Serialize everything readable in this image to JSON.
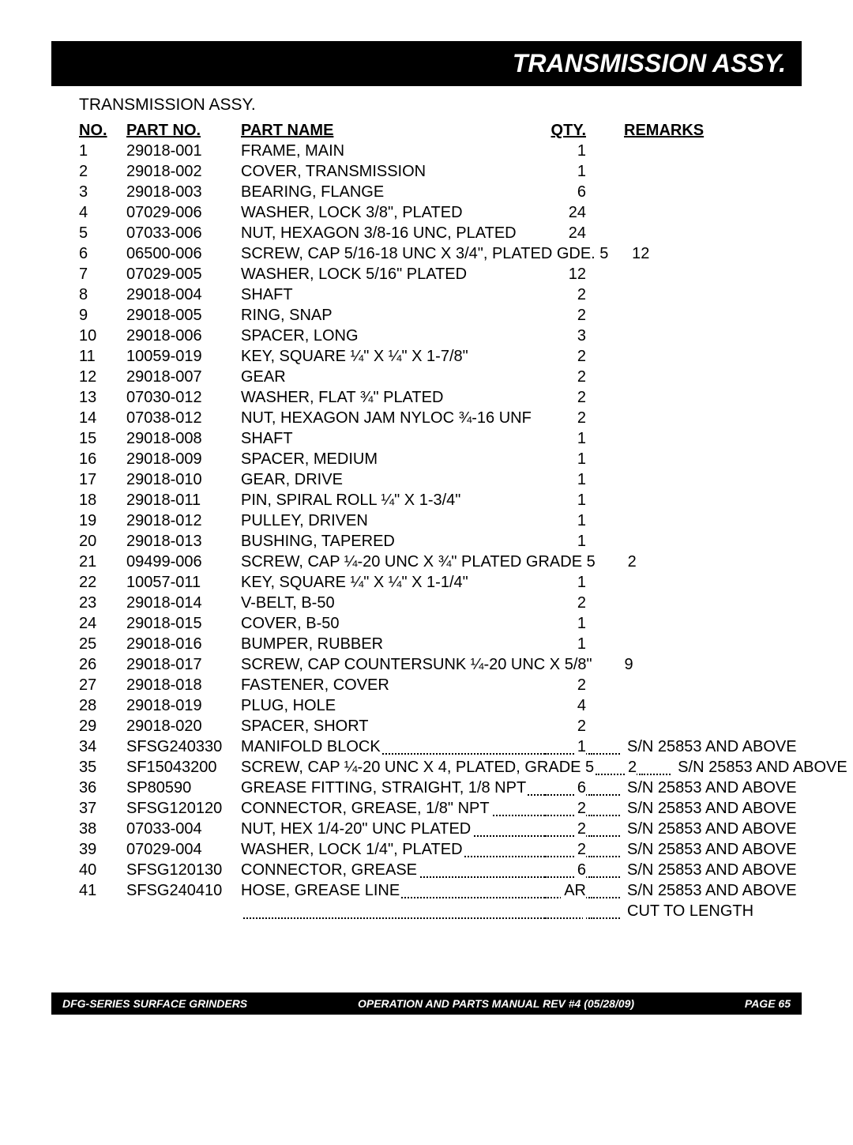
{
  "header_title": "TRANSMISSION ASSY.",
  "subheading": "TRANSMISSION ASSY.",
  "columns": {
    "no": "NO.",
    "part": "PART NO.",
    "name": "PART NAME",
    "qty": "QTY.",
    "remarks": "REMARKS"
  },
  "rows": [
    {
      "no": "1",
      "part": "29018-001",
      "name": "FRAME, MAIN",
      "qty": "1",
      "remarks": "",
      "dotted": false
    },
    {
      "no": "2",
      "part": "29018-002",
      "name": "COVER, TRANSMISSION",
      "qty": "1",
      "remarks": "",
      "dotted": false
    },
    {
      "no": "3",
      "part": "29018-003",
      "name": "BEARING, FLANGE",
      "qty": "6",
      "remarks": "",
      "dotted": false
    },
    {
      "no": "4",
      "part": "07029-006",
      "name": "WASHER, LOCK 3/8\", PLATED",
      "qty": "24",
      "remarks": "",
      "dotted": false
    },
    {
      "no": "5",
      "part": "07033-006",
      "name": "NUT, HEXAGON 3/8-16 UNC, PLATED",
      "qty": "24",
      "remarks": "",
      "dotted": false
    },
    {
      "no": "6",
      "part": "06500-006",
      "name": "SCREW, CAP 5/16-18 UNC X 3/4\", PLATED GDE. 5",
      "qty": "12",
      "remarks": "",
      "dotted": false
    },
    {
      "no": "7",
      "part": "07029-005",
      "name": "WASHER, LOCK 5/16\" PLATED",
      "qty": "12",
      "remarks": "",
      "dotted": false
    },
    {
      "no": "8",
      "part": "29018-004",
      "name": "SHAFT",
      "qty": "2",
      "remarks": "",
      "dotted": false
    },
    {
      "no": "9",
      "part": "29018-005",
      "name": "RING, SNAP",
      "qty": "2",
      "remarks": "",
      "dotted": false
    },
    {
      "no": "10",
      "part": "29018-006",
      "name": "SPACER, LONG",
      "qty": "3",
      "remarks": "",
      "dotted": false
    },
    {
      "no": "11",
      "part": "10059-019",
      "name": "KEY, SQUARE ¼\" X ¼\" X 1-7/8\"",
      "qty": "2",
      "remarks": "",
      "dotted": false
    },
    {
      "no": "12",
      "part": "29018-007",
      "name": "GEAR",
      "qty": "2",
      "remarks": "",
      "dotted": false
    },
    {
      "no": "13",
      "part": "07030-012",
      "name": "WASHER, FLAT ¾\" PLATED",
      "qty": "2",
      "remarks": "",
      "dotted": false
    },
    {
      "no": "14",
      "part": "07038-012",
      "name": "NUT, HEXAGON JAM NYLOC ¾-16 UNF",
      "qty": "2",
      "remarks": "",
      "dotted": false
    },
    {
      "no": "15",
      "part": "29018-008",
      "name": "SHAFT",
      "qty": "1",
      "remarks": "",
      "dotted": false
    },
    {
      "no": "16",
      "part": "29018-009",
      "name": "SPACER, MEDIUM",
      "qty": "1",
      "remarks": "",
      "dotted": false
    },
    {
      "no": "17",
      "part": "29018-010",
      "name": "GEAR, DRIVE",
      "qty": "1",
      "remarks": "",
      "dotted": false
    },
    {
      "no": "18",
      "part": "29018-011",
      "name": "PIN, SPIRAL ROLL ¼\" X 1-3/4\"",
      "qty": "1",
      "remarks": "",
      "dotted": false
    },
    {
      "no": "19",
      "part": "29018-012",
      "name": "PULLEY, DRIVEN",
      "qty": "1",
      "remarks": "",
      "dotted": false
    },
    {
      "no": "20",
      "part": "29018-013",
      "name": "BUSHING, TAPERED",
      "qty": "1",
      "remarks": "",
      "dotted": false
    },
    {
      "no": "21",
      "part": "09499-006",
      "name": "SCREW, CAP ¼-20 UNC X ¾\" PLATED GRADE 5",
      "qty": "2",
      "remarks": "",
      "dotted": false
    },
    {
      "no": "22",
      "part": "10057-011",
      "name": "KEY, SQUARE ¼\" X ¼\" X 1-1/4\"",
      "qty": "1",
      "remarks": "",
      "dotted": false
    },
    {
      "no": "23",
      "part": "29018-014",
      "name": "V-BELT, B-50",
      "qty": "2",
      "remarks": "",
      "dotted": false
    },
    {
      "no": "24",
      "part": "29018-015",
      "name": "COVER, B-50",
      "qty": "1",
      "remarks": "",
      "dotted": false
    },
    {
      "no": "25",
      "part": "29018-016",
      "name": "BUMPER, RUBBER",
      "qty": "1",
      "remarks": "",
      "dotted": false
    },
    {
      "no": "26",
      "part": "29018-017",
      "name": "SCREW, CAP COUNTERSUNK ¼-20 UNC X 5/8\"",
      "qty": "9",
      "remarks": "",
      "dotted": false
    },
    {
      "no": "27",
      "part": "29018-018",
      "name": "FASTENER, COVER",
      "qty": "2",
      "remarks": "",
      "dotted": false
    },
    {
      "no": "28",
      "part": "29018-019",
      "name": "PLUG, HOLE",
      "qty": "4",
      "remarks": "",
      "dotted": false
    },
    {
      "no": "29",
      "part": "29018-020",
      "name": "SPACER, SHORT",
      "qty": "2",
      "remarks": "",
      "dotted": false
    },
    {
      "no": "34",
      "part": "SFSG240330",
      "name": "MANIFOLD BLOCK",
      "qty": "1",
      "remarks": "S/N 25853 AND ABOVE",
      "dotted": true
    },
    {
      "no": "35",
      "part": "SF15043200",
      "name": "SCREW, CAP ¼-20 UNC X 4, PLATED, GRADE 5",
      "qty": "2",
      "remarks": "S/N 25853 AND ABOVE",
      "dotted": true
    },
    {
      "no": "36",
      "part": "SP80590",
      "name": "GREASE FITTING, STRAIGHT, 1/8 NPT",
      "qty": "6",
      "remarks": "S/N 25853 AND ABOVE",
      "dotted": true
    },
    {
      "no": "37",
      "part": "SFSG120120",
      "name": "CONNECTOR, GREASE, 1/8\" NPT",
      "qty": "2",
      "remarks": "S/N 25853 AND ABOVE",
      "dotted": true
    },
    {
      "no": "38",
      "part": "07033-004",
      "name": "NUT, HEX 1/4-20\" UNC PLATED",
      "qty": "2",
      "remarks": "S/N 25853 AND ABOVE",
      "dotted": true
    },
    {
      "no": "39",
      "part": "07029-004",
      "name": "WASHER, LOCK 1/4\", PLATED",
      "qty": "2",
      "remarks": "S/N 25853 AND ABOVE",
      "dotted": true
    },
    {
      "no": "40",
      "part": "SFSG120130",
      "name": "CONNECTOR, GREASE",
      "qty": "6",
      "remarks": "S/N 25853 AND ABOVE",
      "dotted": true
    },
    {
      "no": "41",
      "part": "SFSG240410",
      "name": "HOSE, GREASE LINE",
      "qty": "AR",
      "remarks": "S/N 25853 AND ABOVE",
      "dotted": true
    },
    {
      "no": "",
      "part": "",
      "name": "",
      "qty": "",
      "remarks": "CUT TO LENGTH",
      "dotted": true,
      "cut": true
    }
  ],
  "footer": {
    "left": "DFG-SERIES SURFACE GRINDERS",
    "center": "OPERATION AND PARTS MANUAL REV #4  (05/28/09)",
    "right": "PAGE 65"
  }
}
